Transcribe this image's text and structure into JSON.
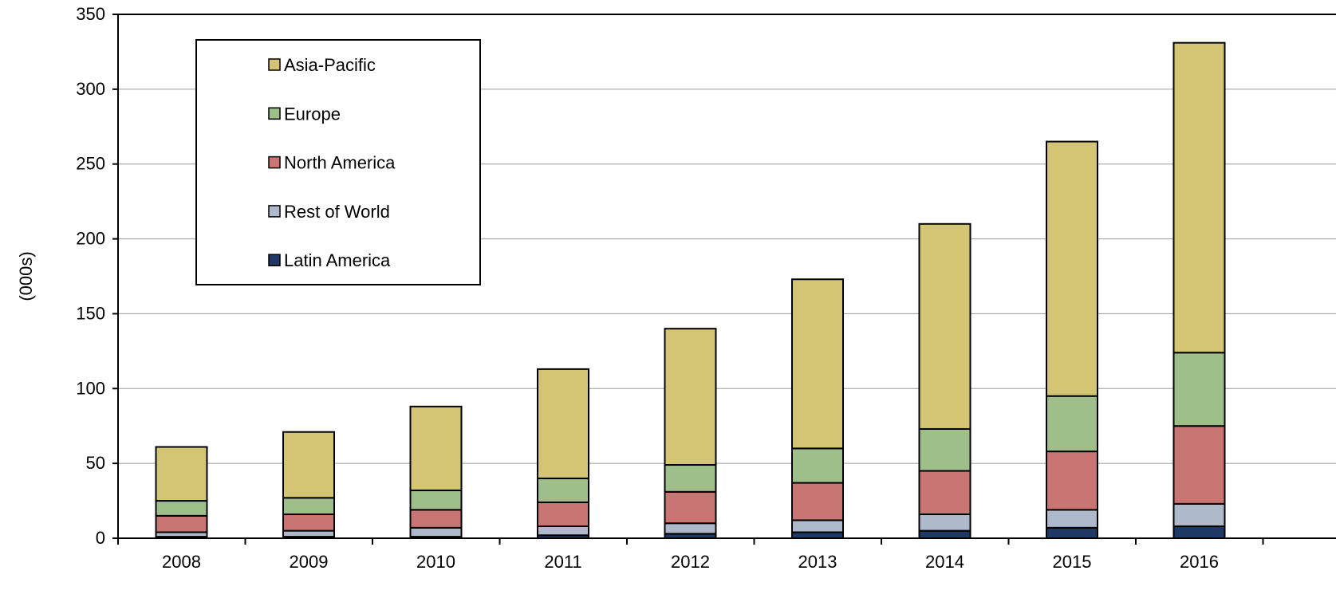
{
  "chart_data": {
    "type": "bar",
    "stacked": true,
    "categories": [
      "2008",
      "2009",
      "2010",
      "2011",
      "2012",
      "2013",
      "2014",
      "2015",
      "2016"
    ],
    "series": [
      {
        "name": "Latin America",
        "color": "#1f3864",
        "values": [
          1,
          1,
          1,
          2,
          3,
          4,
          5,
          7,
          8
        ]
      },
      {
        "name": "Rest of World",
        "color": "#aeb9cc",
        "values": [
          3,
          4,
          6,
          6,
          7,
          8,
          11,
          12,
          15
        ]
      },
      {
        "name": "North America",
        "color": "#c87573",
        "values": [
          11,
          11,
          12,
          16,
          21,
          25,
          29,
          39,
          52
        ]
      },
      {
        "name": "Europe",
        "color": "#9fbf8a",
        "values": [
          10,
          11,
          13,
          16,
          18,
          23,
          28,
          37,
          49
        ]
      },
      {
        "name": "Asia-Pacific",
        "color": "#d4c574",
        "values": [
          36,
          44,
          56,
          73,
          91,
          113,
          137,
          170,
          207
        ]
      }
    ],
    "legend_order": [
      "Asia-Pacific",
      "Europe",
      "North America",
      "Rest of World",
      "Latin America"
    ],
    "legend_position": "top-left",
    "ylabel": "(000s)",
    "xlabel": "",
    "title": "",
    "ylim": [
      0,
      350
    ],
    "yticks": [
      0,
      50,
      100,
      150,
      200,
      250,
      300,
      350
    ],
    "grid": true
  }
}
